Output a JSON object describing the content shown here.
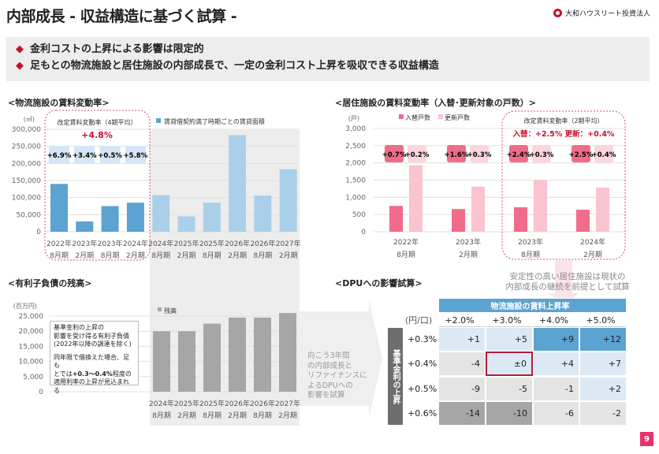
{
  "header": {
    "title": "内部成長 - 収益構造に基づく試算 -",
    "logo_text": "大和ハウスリート投資法人"
  },
  "bullets": [
    "金利コストの上昇による影響は限定的",
    "足もとの物流施設と居住施設の内部成長で、一定の金利コスト上昇を吸収できる収益構造"
  ],
  "colors": {
    "accent": "#c8102e",
    "logistics_bar": "#5ba3d0",
    "logistics_bar_future": "#a9d0e8",
    "move_in": "#f06c8a",
    "renewal": "#f9c3cf",
    "debt_bar": "#a6a6a6"
  },
  "sections": {
    "logistics": "<物流施設の賃料変動率>",
    "residential": "<居住施設の賃料変動率（入替･更新対象の戸数）>",
    "debt": "<有利子負債の残高>",
    "dpu": "<DPUへの影響試算>"
  },
  "chart_data": [
    {
      "type": "bar",
      "title": "",
      "ylabel": "(㎡)",
      "ylim": [
        0,
        300000
      ],
      "yticks": [
        "0",
        "50,000",
        "100,000",
        "150,000",
        "200,000",
        "250,000",
        "300,000"
      ],
      "categories": [
        [
          "2022年",
          "8月期"
        ],
        [
          "2023年",
          "2月期"
        ],
        [
          "2023年",
          "8月期"
        ],
        [
          "2024年",
          "2月期"
        ],
        [
          "2024年",
          "8月期"
        ],
        [
          "2025年",
          "2月期"
        ],
        [
          "2025年",
          "8月期"
        ],
        [
          "2026年",
          "2月期"
        ],
        [
          "2026年",
          "8月期"
        ],
        [
          "2027年",
          "2月期"
        ]
      ],
      "series": [
        {
          "name": "賃貸借契約満了時期ごとの賃貸面積",
          "values": [
            140000,
            30000,
            75000,
            85000,
            107000,
            45000,
            85000,
            283000,
            106000,
            183000
          ]
        }
      ],
      "rate_labels": [
        "+6.9%",
        "+3.4%",
        "+0.5%",
        "+5.8%"
      ],
      "box_title": "改定賃料変動率（4期平均）",
      "box_value": "+4.8%",
      "legend": "top"
    },
    {
      "type": "bar",
      "ylabel": "(戸)",
      "ylim": [
        0,
        3000
      ],
      "yticks": [
        "0",
        "500",
        "1,000",
        "1,500",
        "2,000",
        "2,500",
        "3,000"
      ],
      "categories": [
        [
          "2022年",
          "8月期"
        ],
        [
          "2023年",
          "2月期"
        ],
        [
          "2023年",
          "8月期"
        ],
        [
          "2024年",
          "2月期"
        ]
      ],
      "series": [
        {
          "name": "入替戸数",
          "values": [
            750,
            660,
            710,
            640
          ],
          "labels": [
            "+0.7%",
            "+1.6%",
            "+2.4%",
            "+2.5%"
          ]
        },
        {
          "name": "更新戸数",
          "values": [
            1930,
            1310,
            1510,
            1280
          ],
          "labels": [
            "+0.2%",
            "+0.3%",
            "+0.3%",
            "+0.4%"
          ]
        }
      ],
      "box_title": "改定賃料変動率（2期平均）",
      "box_value": "入替：+2.5%  更新：+0.4%",
      "legend": "top"
    },
    {
      "type": "bar",
      "ylabel": "(百万円)",
      "ylim": [
        0,
        25000
      ],
      "yticks": [
        "0",
        "5,000",
        "10,000",
        "15,000",
        "20,000",
        "25,000"
      ],
      "categories": [
        [
          "2024年",
          "8月期"
        ],
        [
          "2025年",
          "2月期"
        ],
        [
          "2025年",
          "8月期"
        ],
        [
          "2026年",
          "2月期"
        ],
        [
          "2026年",
          "8月期"
        ],
        [
          "2027年",
          "2月期"
        ]
      ],
      "series": [
        {
          "name": "残高",
          "values": [
            20000,
            20000,
            22500,
            24500,
            24500,
            26000
          ]
        }
      ],
      "legend": "top-left"
    }
  ],
  "debt_note": {
    "line1": "基準金利の上昇の",
    "line2": "影響を受け得る有利子負債",
    "line3": "(2022年以降の調達を除く)",
    "line4": "同年限で借換えた場合、足も",
    "line5a": "とでは",
    "line5b": "+0.3～0.4%",
    "line5c": "程度の",
    "line6": "適用利率の上昇が見込まれる"
  },
  "arrow_text": [
    "向こう3年間",
    "の内部成長と",
    "リファイナンスに",
    "よるDPUへの",
    "影響を試算"
  ],
  "residential_note": [
    "安定性の高い居住施設は現状の",
    "内部成長の継続を前提として試算"
  ],
  "dpu_table": {
    "unit": "(円/口)",
    "col_header": "物流施設の賃料上昇率",
    "row_header": "基準金利の上昇",
    "columns": [
      "+2.0%",
      "+3.0%",
      "+4.0%",
      "+5.0%"
    ],
    "rows": [
      {
        "label": "+0.3%",
        "values": [
          "+1",
          "+5",
          "+9",
          "+12"
        ]
      },
      {
        "label": "+0.4%",
        "values": [
          "-4",
          "±0",
          "+4",
          "+7"
        ]
      },
      {
        "label": "+0.5%",
        "values": [
          "-9",
          "-5",
          "-1",
          "+2"
        ]
      },
      {
        "label": "+0.6%",
        "values": [
          "-14",
          "-10",
          "-6",
          "-2"
        ]
      }
    ],
    "highlight": "±0"
  },
  "page_number": "9"
}
